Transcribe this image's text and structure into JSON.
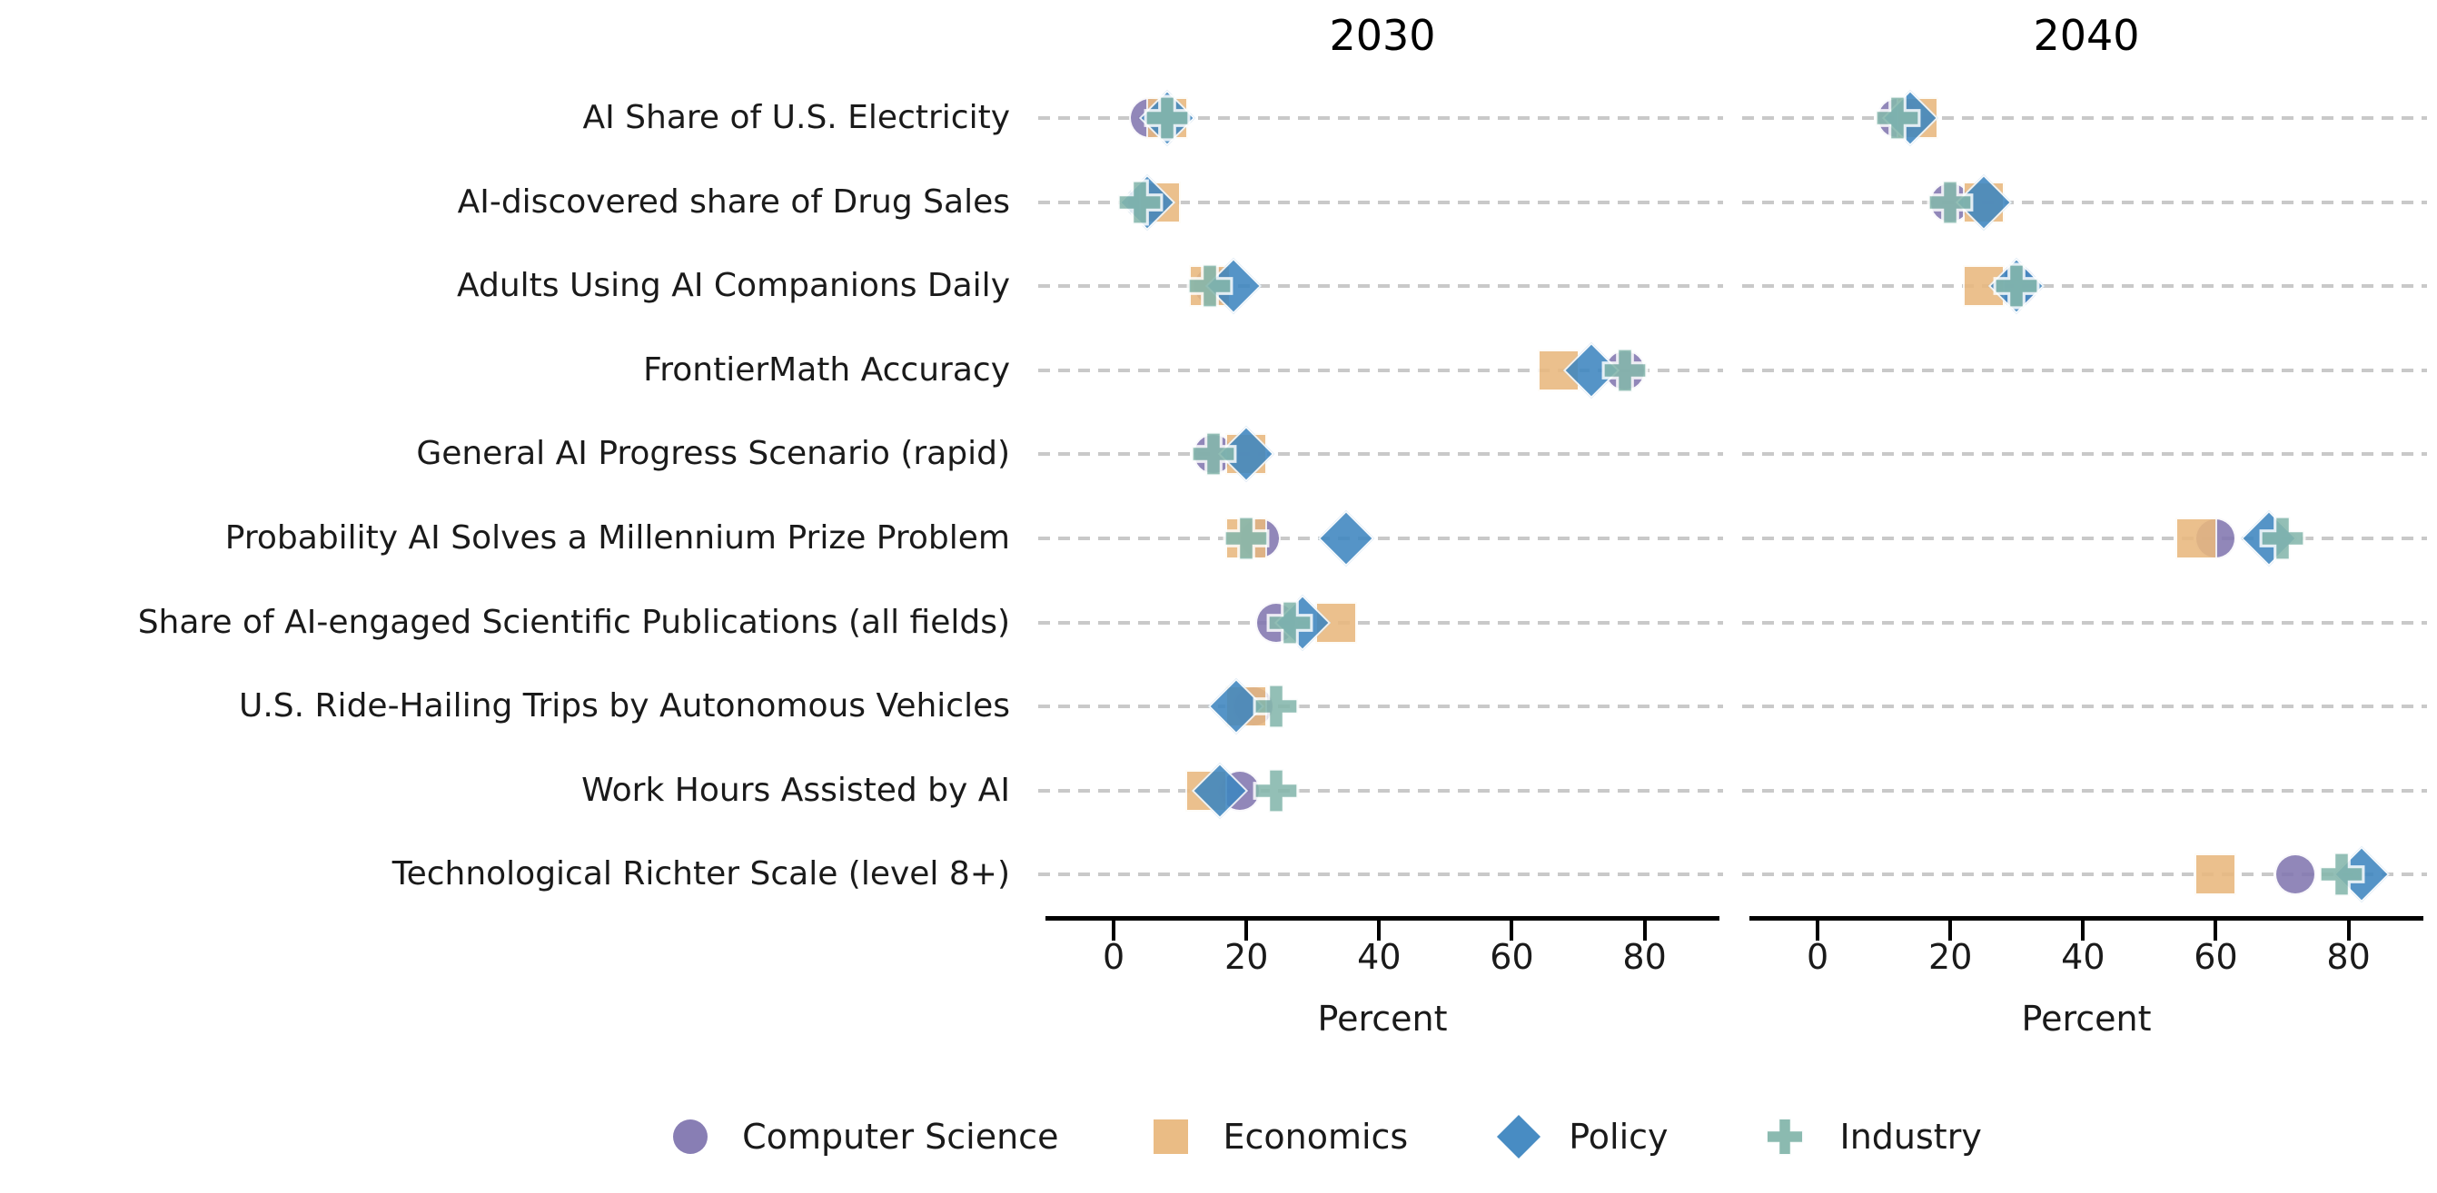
{
  "chart_data": {
    "type": "scatter",
    "subtype": "dot-plot-two-facets",
    "xlabel": "Percent",
    "x_ticks": [
      0,
      20,
      40,
      60,
      80
    ],
    "x_range": [
      -10,
      91
    ],
    "grid": "horizontal-dashed",
    "legend_position": "bottom-center",
    "categories": [
      "AI Share of U.S. Electricity",
      "AI-discovered share of Drug Sales",
      "Adults Using AI Companions Daily",
      "FrontierMath Accuracy",
      "General AI Progress Scenario (rapid)",
      "Probability AI Solves a Millennium Prize Problem",
      "Share of AI-engaged Scientific Publications (all fields)",
      "U.S. Ride-Hailing Trips by Autonomous Vehicles",
      "Work Hours Assisted by AI",
      "Technological Richter Scale (level 8+)"
    ],
    "groups": [
      {
        "name": "Computer Science",
        "marker": "circle",
        "color": "#8277b0"
      },
      {
        "name": "Economics",
        "marker": "square",
        "color": "#e9b87e"
      },
      {
        "name": "Policy",
        "marker": "diamond",
        "color": "#3e86c0"
      },
      {
        "name": "Industry",
        "marker": "plus",
        "color": "#85b7ac"
      }
    ],
    "panels": [
      {
        "title": "2030",
        "xlabel": "Percent",
        "series": [
          {
            "name": "Computer Science",
            "values": [
              5.5,
              5,
              15,
              77,
              15,
              22,
              24.5,
              21,
              19,
              null
            ]
          },
          {
            "name": "Economics",
            "values": [
              8,
              7,
              14.5,
              67,
              20,
              20,
              33.5,
              20,
              14,
              null
            ]
          },
          {
            "name": "Policy",
            "values": [
              8,
              5,
              18,
              72,
              20,
              35,
              28.5,
              18.5,
              16,
              null
            ]
          },
          {
            "name": "Industry",
            "values": [
              8,
              4,
              14.5,
              77,
              15,
              20,
              26.5,
              24.5,
              24.5,
              null
            ]
          }
        ]
      },
      {
        "title": "2040",
        "xlabel": "Percent",
        "series": [
          {
            "name": "Computer Science",
            "values": [
              12,
              20,
              30,
              null,
              null,
              60,
              null,
              null,
              null,
              72
            ]
          },
          {
            "name": "Economics",
            "values": [
              15,
              25,
              25,
              null,
              null,
              57,
              null,
              null,
              null,
              60
            ]
          },
          {
            "name": "Policy",
            "values": [
              14,
              25,
              30,
              null,
              null,
              68,
              null,
              null,
              null,
              82
            ]
          },
          {
            "name": "Industry",
            "values": [
              12,
              20,
              30,
              null,
              null,
              70,
              null,
              null,
              null,
              79
            ]
          }
        ]
      }
    ],
    "colors": {
      "grid": "#c9c9c9",
      "axis": "#000000",
      "text": "#1a1a1a",
      "background": "#ffffff"
    }
  },
  "legend": {
    "items": [
      {
        "label": "Computer Science"
      },
      {
        "label": "Economics"
      },
      {
        "label": "Policy"
      },
      {
        "label": "Industry"
      }
    ]
  }
}
